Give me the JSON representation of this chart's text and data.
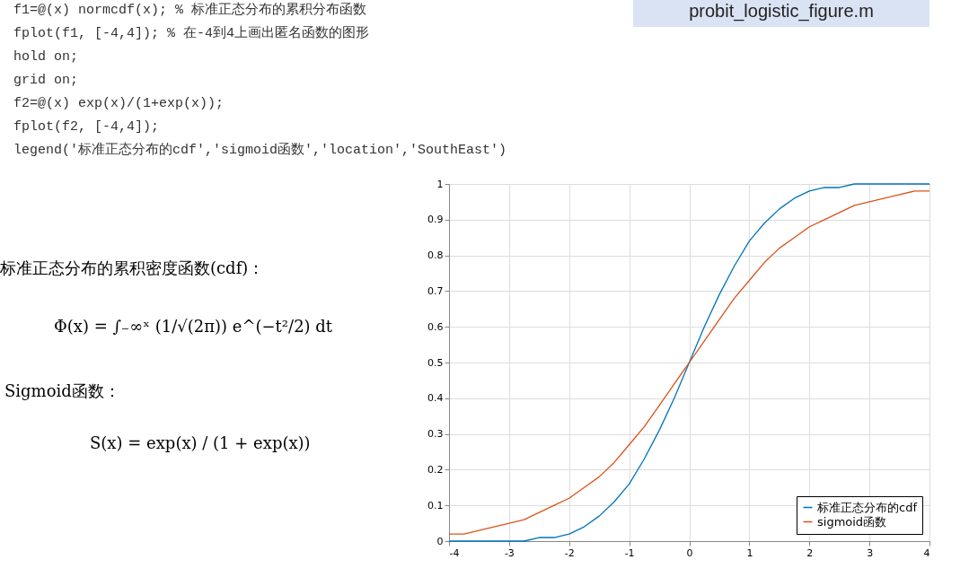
{
  "chart_data": {
    "type": "line",
    "annotations": [
      "f1=@(x) normcdf(x);  % 标准正态分布的累积分布函数",
      "fplot(f1, [-4,4]);  % 在-4到4上画出匿名函数的图形",
      "hold on;",
      "grid on;",
      "f2=@(x) exp(x)/(1+exp(x));",
      "fplot(f2, [-4,4]);",
      "legend('标准正态分布的cdf','sigmoid函数','location','SouthEast')",
      "probit_logistic_figure.m",
      "标准正态分布的累积密度函数(cdf)：",
      "Φ(x) = ∫₋∞ˣ (1/√(2π)) e^(−t²/2) dt",
      "Sigmoid函数：",
      "S(x) = exp(x) / (1 + exp(x))"
    ],
    "x": [
      -4,
      -3.75,
      -3.5,
      -3.25,
      -3,
      -2.75,
      -2.5,
      -2.25,
      -2,
      -1.75,
      -1.5,
      -1.25,
      -1,
      -0.75,
      -0.5,
      -0.25,
      0,
      0.25,
      0.5,
      0.75,
      1,
      1.25,
      1.5,
      1.75,
      2,
      2.25,
      2.5,
      2.75,
      3,
      3.25,
      3.5,
      3.75,
      4
    ],
    "series": [
      {
        "name": "标准正态分布的cdf",
        "color": "#0072bd",
        "values": [
          0,
          0,
          0,
          0,
          0,
          0,
          0.01,
          0.01,
          0.02,
          0.04,
          0.07,
          0.11,
          0.16,
          0.23,
          0.31,
          0.4,
          0.5,
          0.6,
          0.69,
          0.77,
          0.84,
          0.89,
          0.93,
          0.96,
          0.98,
          0.99,
          0.99,
          1,
          1,
          1,
          1,
          1,
          1
        ]
      },
      {
        "name": "sigmoid函数",
        "color": "#d95319",
        "values": [
          0.02,
          0.02,
          0.03,
          0.04,
          0.05,
          0.06,
          0.08,
          0.1,
          0.12,
          0.15,
          0.18,
          0.22,
          0.27,
          0.32,
          0.38,
          0.44,
          0.5,
          0.56,
          0.62,
          0.68,
          0.73,
          0.78,
          0.82,
          0.85,
          0.88,
          0.9,
          0.92,
          0.94,
          0.95,
          0.96,
          0.97,
          0.98,
          0.98
        ]
      }
    ],
    "xlim": [
      -4,
      4
    ],
    "xticks": [
      -4,
      -3,
      -2,
      -1,
      0,
      1,
      2,
      3,
      4
    ],
    "ylim": [
      0,
      1
    ],
    "yticks": [
      0,
      0.1,
      0.2,
      0.3,
      0.4,
      0.5,
      0.6,
      0.7,
      0.8,
      0.9,
      1
    ],
    "grid": true,
    "legend": "bottom right",
    "line_style": "solid",
    "marker": "none"
  }
}
